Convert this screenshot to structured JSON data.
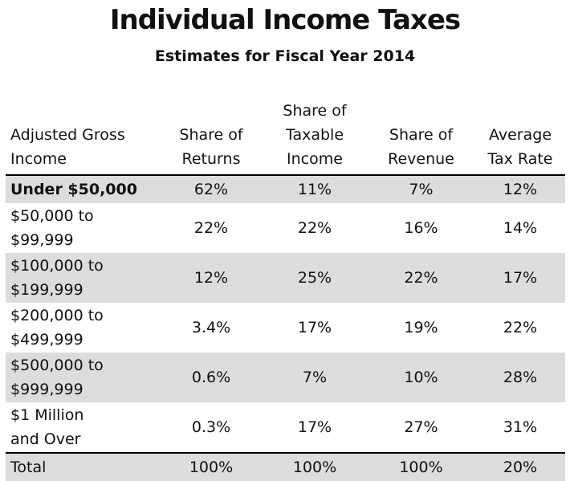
{
  "title": "Individual Income Taxes",
  "subtitle": "Estimates for Fiscal Year 2014",
  "colors": {
    "shaded_row": "#dcdcdc",
    "rule": "#000000",
    "text": "#111111"
  },
  "table": {
    "headers": [
      [
        "Adjusted Gross",
        "Income"
      ],
      [
        "Share of",
        "Returns"
      ],
      [
        "Share of",
        "Taxable",
        "Income"
      ],
      [
        "Share of",
        "Revenue"
      ],
      [
        "Average",
        "Tax Rate"
      ]
    ],
    "rows": [
      {
        "label": [
          "Under $50,000"
        ],
        "values": [
          "62%",
          "11%",
          "7%",
          "12%"
        ],
        "bold": true,
        "shaded": true
      },
      {
        "label": [
          "$50,000 to",
          "$99,999"
        ],
        "values": [
          "22%",
          "22%",
          "16%",
          "14%"
        ],
        "bold": false,
        "shaded": false
      },
      {
        "label": [
          "$100,000 to",
          "$199,999"
        ],
        "values": [
          "12%",
          "25%",
          "22%",
          "17%"
        ],
        "bold": false,
        "shaded": true
      },
      {
        "label": [
          "$200,000 to",
          "$499,999"
        ],
        "values": [
          "3.4%",
          "17%",
          "19%",
          "22%"
        ],
        "bold": false,
        "shaded": false
      },
      {
        "label": [
          "$500,000 to",
          "$999,999"
        ],
        "values": [
          "0.6%",
          "7%",
          "10%",
          "28%"
        ],
        "bold": false,
        "shaded": true
      },
      {
        "label": [
          "$1 Million",
          "and Over"
        ],
        "values": [
          "0.3%",
          "17%",
          "27%",
          "31%"
        ],
        "bold": false,
        "shaded": false
      },
      {
        "label": [
          "Total"
        ],
        "values": [
          "100%",
          "100%",
          "100%",
          "20%"
        ],
        "bold": false,
        "shaded": true,
        "total": true
      }
    ]
  },
  "chart_data": {
    "type": "table",
    "title": "Individual Income Taxes",
    "subtitle": "Estimates for Fiscal Year 2014",
    "columns": [
      "Adjusted Gross Income",
      "Share of Returns",
      "Share of Taxable Income",
      "Share of Revenue",
      "Average Tax Rate"
    ],
    "rows": [
      [
        "Under $50,000",
        "62%",
        "11%",
        "7%",
        "12%"
      ],
      [
        "$50,000 to $99,999",
        "22%",
        "22%",
        "16%",
        "14%"
      ],
      [
        "$100,000 to $199,999",
        "12%",
        "25%",
        "22%",
        "17%"
      ],
      [
        "$200,000 to $499,999",
        "3.4%",
        "17%",
        "19%",
        "22%"
      ],
      [
        "$500,000 to $999,999",
        "0.6%",
        "7%",
        "10%",
        "28%"
      ],
      [
        "$1 Million and Over",
        "0.3%",
        "17%",
        "27%",
        "31%"
      ],
      [
        "Total",
        "100%",
        "100%",
        "100%",
        "20%"
      ]
    ]
  }
}
